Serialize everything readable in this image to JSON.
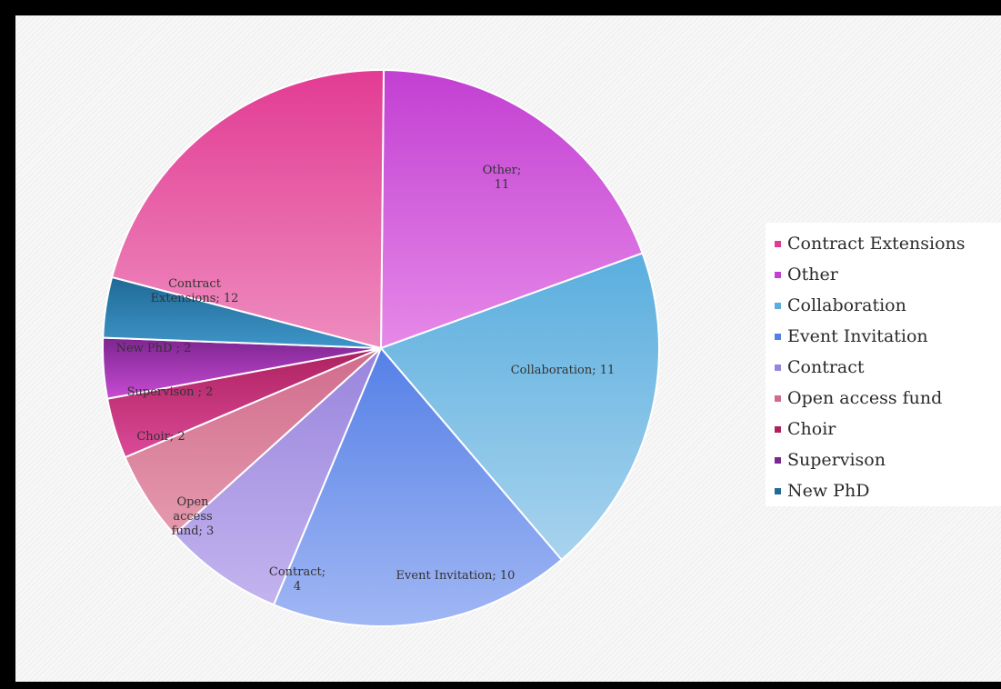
{
  "chart_data": {
    "type": "pie",
    "slices": [
      {
        "label": "Other",
        "value": 11,
        "data_label": "Other; 11",
        "color_start": "#c23fd2",
        "color_end": "#e689e8"
      },
      {
        "label": "Collaboration",
        "value": 11,
        "data_label": "Collaboration; 11",
        "color_start": "#5aaede",
        "color_end": "#a8d3ee"
      },
      {
        "label": "Event Invitation",
        "value": 10,
        "data_label": "Event Invitation; 10",
        "color_start": "#5580e6",
        "color_end": "#a1b7f4"
      },
      {
        "label": "Contract",
        "value": 4,
        "data_label": "Contract; 4",
        "color_start": "#9984dc",
        "color_end": "#c3b4ef"
      },
      {
        "label": "Open access fund",
        "value": 3,
        "data_label": "Open access fund; 3",
        "color_start": "#d06b8c",
        "color_end": "#e59aae"
      },
      {
        "label": "Choir",
        "value": 2,
        "data_label": "Choir; 2",
        "color_start": "#ad215f",
        "color_end": "#db4a98"
      },
      {
        "label": "Supervison",
        "value": 2,
        "data_label": "Supervison ; 2",
        "color_start": "#7d2590",
        "color_end": "#c64bd2"
      },
      {
        "label": "New PhD",
        "value": 2,
        "data_label": "New PhD ; 2",
        "color_start": "#1f6a96",
        "color_end": "#3e95c8"
      },
      {
        "label": "Contract Extensions",
        "value": 12,
        "data_label": "Contract Extensions; 12",
        "color_start": "#e23b93",
        "color_end": "#ee8cbf"
      }
    ],
    "legend": {
      "position": "right",
      "entries": [
        "Contract Extensions",
        "Other",
        "Collaboration",
        "Event Invitation",
        "Contract",
        "Open access fund",
        "Choir",
        "Supervison",
        "New PhD"
      ]
    }
  }
}
